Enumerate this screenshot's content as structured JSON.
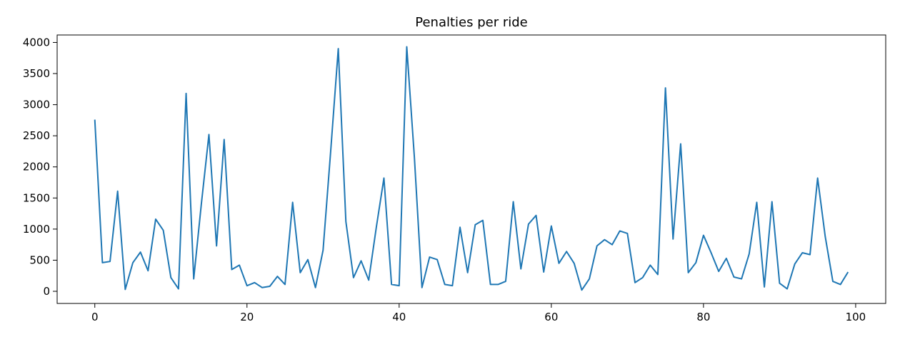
{
  "chart_data": {
    "type": "line",
    "title": "Penalties per ride",
    "xlabel": "",
    "ylabel": "",
    "xlim": [
      -4.95,
      103.95
    ],
    "ylim": [
      -195,
      4120
    ],
    "x_ticks": [
      0,
      20,
      40,
      60,
      80,
      100
    ],
    "y_ticks": [
      0,
      500,
      1000,
      1500,
      2000,
      2500,
      3000,
      3500,
      4000
    ],
    "grid": false,
    "legend": "none",
    "line_color": "#1f77b4",
    "series": [
      {
        "x": [
          0,
          1,
          2,
          3,
          4,
          5,
          6,
          7,
          8,
          9,
          10,
          11,
          12,
          13,
          14,
          15,
          16,
          17,
          18,
          19,
          20,
          21,
          22,
          23,
          24,
          25,
          26,
          27,
          28,
          29,
          30,
          31,
          32,
          33,
          34,
          35,
          36,
          37,
          38,
          39,
          40,
          41,
          42,
          43,
          44,
          45,
          46,
          47,
          48,
          49,
          50,
          51,
          52,
          53,
          54,
          55,
          56,
          57,
          58,
          59,
          60,
          61,
          62,
          63,
          64,
          65,
          66,
          67,
          68,
          69,
          70,
          71,
          72,
          73,
          74,
          75,
          76,
          77,
          78,
          79,
          80,
          81,
          82,
          83,
          84,
          85,
          86,
          87,
          88,
          89,
          90,
          91,
          92,
          93,
          94,
          95,
          96,
          97,
          98,
          99
        ],
        "values": [
          2760,
          460,
          480,
          1610,
          30,
          460,
          630,
          330,
          1160,
          980,
          220,
          40,
          3180,
          200,
          1400,
          2520,
          730,
          2440,
          350,
          420,
          90,
          140,
          60,
          80,
          240,
          110,
          1430,
          300,
          510,
          60,
          660,
          2250,
          3900,
          1120,
          220,
          490,
          180,
          1030,
          1820,
          110,
          90,
          3930,
          2160,
          60,
          550,
          510,
          110,
          90,
          1030,
          300,
          1070,
          1140,
          110,
          110,
          160,
          1440,
          360,
          1080,
          1220,
          310,
          1050,
          450,
          640,
          450,
          20,
          200,
          730,
          830,
          750,
          970,
          930,
          140,
          220,
          420,
          270,
          3270,
          840,
          2370,
          300,
          460,
          900,
          620,
          320,
          530,
          230,
          200,
          600,
          1430,
          70,
          1440,
          130,
          40,
          440,
          620,
          590,
          1820,
          880,
          160,
          110,
          310
        ]
      }
    ]
  }
}
